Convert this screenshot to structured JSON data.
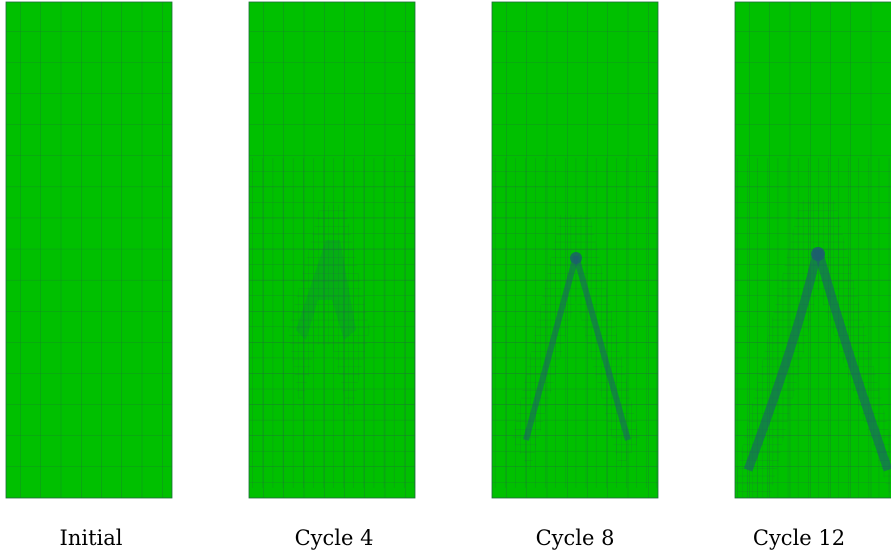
{
  "colors": {
    "mesh_fill": "#00c000",
    "grid_line": "#1f6b3a",
    "crack_band": "#1d5d6e"
  },
  "panels": [
    {
      "caption": "Initial",
      "refinement_level": 0
    },
    {
      "caption": "Cycle 4",
      "refinement_level": 4
    },
    {
      "caption": "Cycle 8",
      "refinement_level": 8
    },
    {
      "caption": "Cycle 12",
      "refinement_level": 12
    }
  ]
}
